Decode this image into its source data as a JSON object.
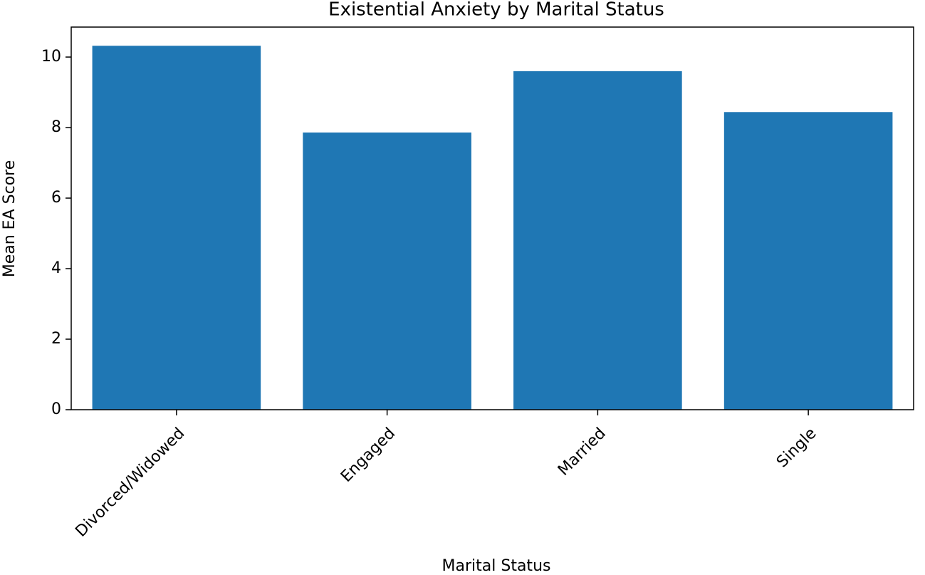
{
  "chart_data": {
    "type": "bar",
    "title": "Existential Anxiety by Marital Status",
    "x_label": "Marital Status",
    "y_label": "Mean EA Score",
    "categories": [
      "Divorced/Widowed",
      "Engaged",
      "Married",
      "Single"
    ],
    "values": [
      10.32,
      7.86,
      9.6,
      8.44
    ],
    "color": "#1f77b4",
    "ylim": [
      0,
      10.85
    ],
    "yticks": [
      0,
      2,
      4,
      6,
      8,
      10
    ]
  }
}
